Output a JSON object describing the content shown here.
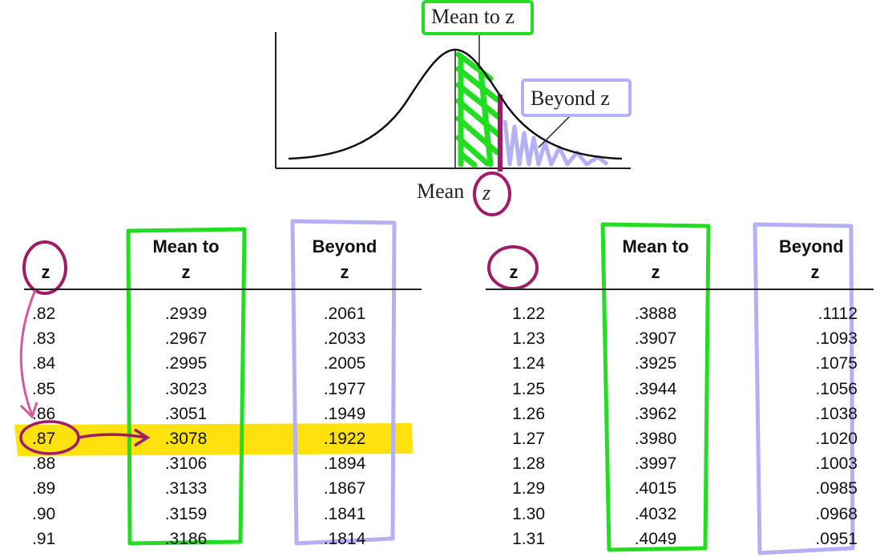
{
  "figure": {
    "mean_to_z_label": "Mean to z",
    "beyond_z_label": "Beyond z",
    "mean_label": "Mean",
    "z_label": "z"
  },
  "table_left": {
    "headers": {
      "z": "z",
      "mean_to_line1": "Mean to",
      "mean_to_line2": "z",
      "beyond_line1": "Beyond",
      "beyond_line2": "z"
    },
    "rows": [
      {
        "z": ".82",
        "mean_to": ".2939",
        "beyond": ".2061"
      },
      {
        "z": ".83",
        "mean_to": ".2967",
        "beyond": ".2033"
      },
      {
        "z": ".84",
        "mean_to": ".2995",
        "beyond": ".2005"
      },
      {
        "z": ".85",
        "mean_to": ".3023",
        "beyond": ".1977"
      },
      {
        "z": ".86",
        "mean_to": ".3051",
        "beyond": ".1949"
      },
      {
        "z": ".87",
        "mean_to": ".3078",
        "beyond": ".1922"
      },
      {
        "z": ".88",
        "mean_to": ".3106",
        "beyond": ".1894"
      },
      {
        "z": ".89",
        "mean_to": ".3133",
        "beyond": ".1867"
      },
      {
        "z": ".90",
        "mean_to": ".3159",
        "beyond": ".1841"
      },
      {
        "z": ".91",
        "mean_to": ".3186",
        "beyond": ".1814"
      }
    ]
  },
  "table_right": {
    "headers": {
      "z": "z",
      "mean_to_line1": "Mean to",
      "mean_to_line2": "z",
      "beyond_line1": "Beyond",
      "beyond_line2": "z"
    },
    "rows": [
      {
        "z": "1.22",
        "mean_to": ".3888",
        "beyond": ".1112"
      },
      {
        "z": "1.23",
        "mean_to": ".3907",
        "beyond": ".1093"
      },
      {
        "z": "1.24",
        "mean_to": ".3925",
        "beyond": ".1075"
      },
      {
        "z": "1.25",
        "mean_to": ".3944",
        "beyond": ".1056"
      },
      {
        "z": "1.26",
        "mean_to": ".3962",
        "beyond": ".1038"
      },
      {
        "z": "1.27",
        "mean_to": ".3980",
        "beyond": ".1020"
      },
      {
        "z": "1.28",
        "mean_to": ".3997",
        "beyond": ".1003"
      },
      {
        "z": "1.29",
        "mean_to": ".4015",
        "beyond": ".0985"
      },
      {
        "z": "1.30",
        "mean_to": ".4032",
        "beyond": ".0968"
      },
      {
        "z": "1.31",
        "mean_to": ".4049",
        "beyond": ".0951"
      }
    ]
  },
  "highlight": {
    "row_index": 5,
    "color": "#ffe000"
  },
  "annotation_colors": {
    "green": "#22dd22",
    "lavender": "#b3b0f5",
    "magenta": "#a01c6a"
  }
}
